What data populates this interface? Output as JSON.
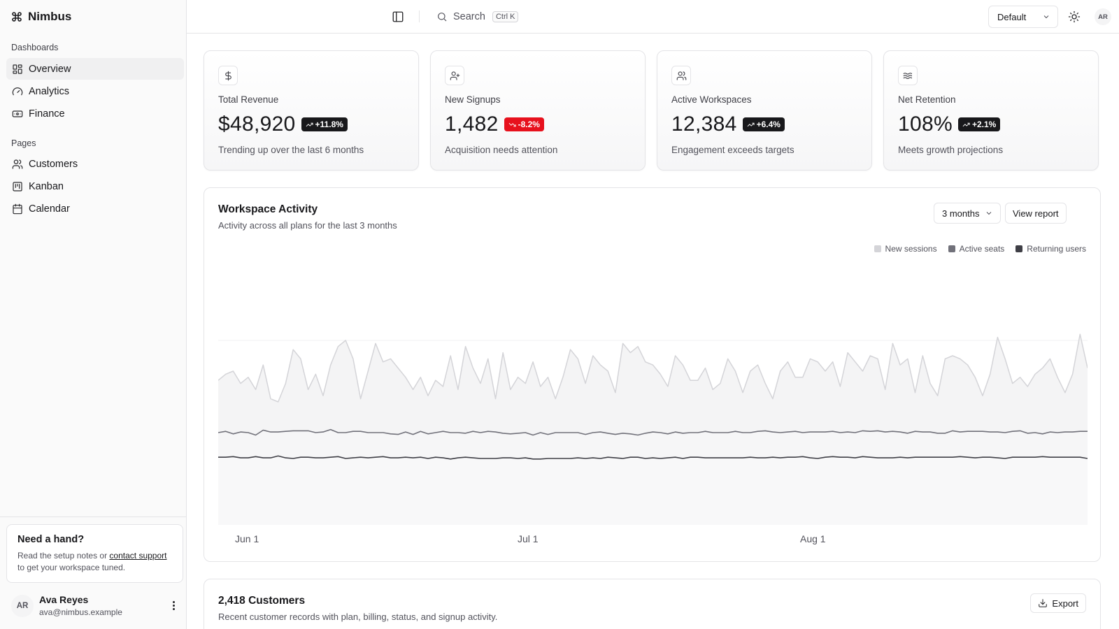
{
  "brand": {
    "name": "Nimbus",
    "icon": "command-icon"
  },
  "sidebar": {
    "groups": [
      {
        "label": "Dashboards",
        "items": [
          {
            "label": "Overview",
            "icon": "grid-icon",
            "active": true
          },
          {
            "label": "Analytics",
            "icon": "gauge-icon"
          },
          {
            "label": "Finance",
            "icon": "banknote-icon"
          }
        ]
      },
      {
        "label": "Pages",
        "items": [
          {
            "label": "Customers",
            "icon": "users-icon"
          },
          {
            "label": "Kanban",
            "icon": "kanban-icon"
          },
          {
            "label": "Calendar",
            "icon": "calendar-icon"
          }
        ]
      }
    ],
    "help": {
      "title": "Need a hand?",
      "text_before": "Read the setup notes or ",
      "link": "contact support",
      "text_after": " to get your workspace tuned."
    },
    "user": {
      "initials": "AR",
      "name": "Ava Reyes",
      "email": "ava@nimbus.example"
    }
  },
  "topbar": {
    "search_label": "Search",
    "search_shortcut": "Ctrl K",
    "theme_select": "Default",
    "avatar_initials": "AR"
  },
  "stats": [
    {
      "label": "Total Revenue",
      "value": "$48,920",
      "change": "+11.8%",
      "trend": "up",
      "foot": "Trending up over the last 6 months",
      "icon": "dollar-icon"
    },
    {
      "label": "New Signups",
      "value": "1,482",
      "change": "-8.2%",
      "trend": "down",
      "foot": "Acquisition needs attention",
      "icon": "user-plus-icon"
    },
    {
      "label": "Active Workspaces",
      "value": "12,384",
      "change": "+6.4%",
      "trend": "up",
      "foot": "Engagement exceeds targets",
      "icon": "users-icon"
    },
    {
      "label": "Net Retention",
      "value": "108%",
      "change": "+2.1%",
      "trend": "up",
      "foot": "Meets growth projections",
      "icon": "waves-icon"
    }
  ],
  "activity": {
    "title": "Workspace Activity",
    "subtitle": "Activity across all plans for the last 3 months",
    "range_select": "3 months",
    "report_button": "View report"
  },
  "chart_data": {
    "type": "area",
    "title": "Workspace Activity",
    "xlabel": "",
    "ylabel": "",
    "x_ticks": [
      "Jun 1",
      "Jul 1",
      "Aug 1"
    ],
    "legend": "top-right",
    "grid": true,
    "ylim": [
      0,
      400
    ],
    "series": [
      {
        "name": "New sessions",
        "color": "#d4d4d8",
        "values": [
          235,
          245,
          250,
          230,
          240,
          220,
          260,
          205,
          200,
          230,
          285,
          270,
          220,
          245,
          210,
          260,
          290,
          300,
          270,
          205,
          250,
          295,
          265,
          270,
          255,
          240,
          220,
          240,
          210,
          235,
          225,
          275,
          220,
          290,
          255,
          230,
          270,
          205,
          280,
          220,
          240,
          230,
          265,
          225,
          240,
          205,
          240,
          285,
          270,
          230,
          275,
          260,
          250,
          215,
          295,
          280,
          290,
          265,
          260,
          245,
          225,
          275,
          260,
          235,
          235,
          255,
          220,
          230,
          270,
          250,
          215,
          250,
          260,
          230,
          205,
          250,
          265,
          240,
          240,
          270,
          265,
          250,
          265,
          225,
          280,
          265,
          250,
          275,
          270,
          220,
          295,
          260,
          270,
          215,
          275,
          230,
          210,
          270,
          275,
          270,
          260,
          240,
          210,
          245,
          305,
          270,
          230,
          240,
          225,
          245,
          255,
          270,
          240,
          215,
          245,
          310,
          255
        ]
      },
      {
        "name": "Active seats",
        "color": "#71717a",
        "values": [
          150,
          152,
          148,
          151,
          150,
          146,
          154,
          151,
          151,
          152,
          153,
          153,
          153,
          150,
          151,
          155,
          150,
          150,
          152,
          152,
          150,
          150,
          150,
          148,
          147,
          151,
          147,
          152,
          148,
          150,
          152,
          150,
          150,
          149,
          152,
          150,
          152,
          151,
          149,
          148,
          149,
          150,
          146,
          150,
          147,
          150,
          150,
          150,
          150,
          147,
          150,
          151,
          149,
          147,
          149,
          148,
          146,
          149,
          151,
          150,
          148,
          151,
          149,
          150,
          150,
          152,
          150,
          150,
          150,
          152,
          150,
          150,
          152,
          153,
          151,
          150,
          151,
          152,
          150,
          151,
          151,
          151,
          152,
          150,
          151,
          150,
          153,
          152,
          153,
          151,
          152,
          151,
          149,
          152,
          151,
          151,
          149,
          149,
          153,
          151,
          152,
          152,
          152,
          151,
          151,
          150,
          152,
          153,
          149,
          150,
          148,
          151,
          150,
          151,
          151,
          152,
          152
        ]
      },
      {
        "name": "Returning users",
        "color": "#3f3f46",
        "values": [
          110,
          110,
          111,
          109,
          109,
          111,
          109,
          109,
          112,
          109,
          108,
          110,
          110,
          109,
          109,
          110,
          111,
          108,
          109,
          110,
          109,
          110,
          111,
          109,
          109,
          110,
          109,
          110,
          108,
          110,
          109,
          107,
          109,
          110,
          109,
          108,
          108,
          108,
          109,
          109,
          108,
          109,
          107,
          107,
          108,
          108,
          108,
          108,
          109,
          108,
          109,
          108,
          110,
          109,
          108,
          110,
          110,
          108,
          109,
          108,
          109,
          110,
          108,
          110,
          110,
          109,
          109,
          109,
          109,
          109,
          109,
          110,
          109,
          109,
          110,
          109,
          110,
          110,
          111,
          109,
          108,
          110,
          111,
          110,
          110,
          109,
          111,
          110,
          109,
          109,
          109,
          110,
          109,
          110,
          110,
          110,
          110,
          110,
          110,
          111,
          110,
          109,
          110,
          110,
          109,
          108,
          110,
          110,
          110,
          110,
          111,
          110,
          110,
          110,
          110,
          110,
          108
        ]
      }
    ]
  },
  "customers": {
    "title": "2,418 Customers",
    "subtitle": "Recent customer records with plan, billing, status, and signup activity.",
    "export_button": "Export"
  }
}
